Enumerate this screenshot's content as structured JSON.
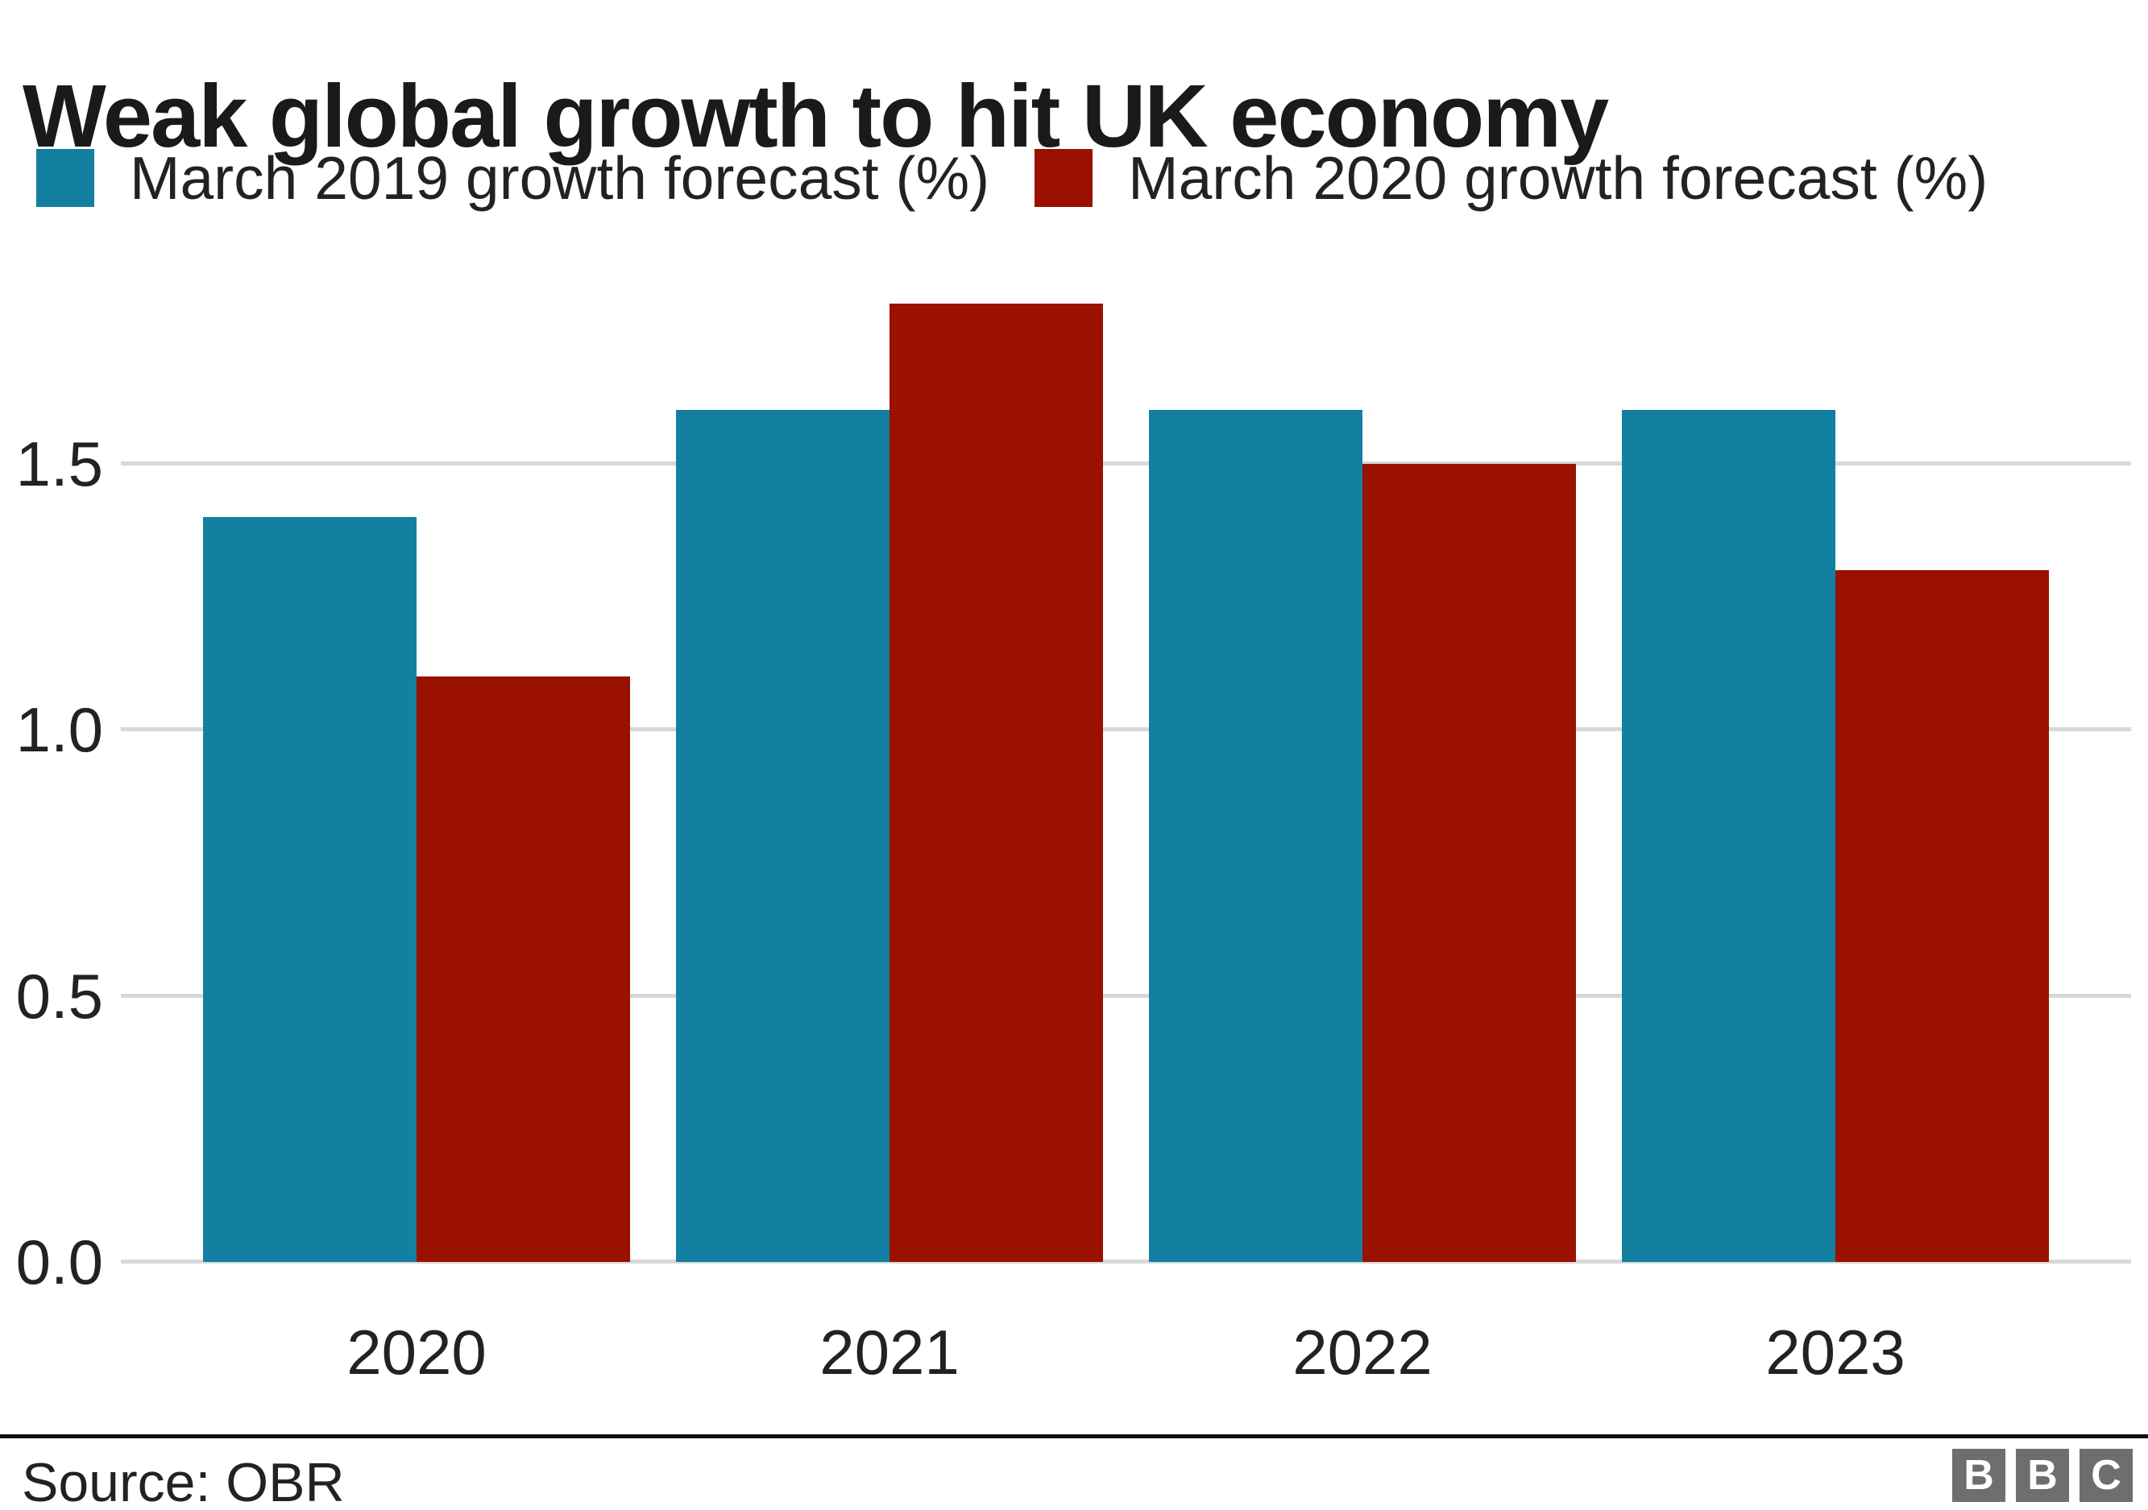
{
  "title": "Weak global growth to hit UK economy",
  "source": "Source: OBR",
  "footer_logo": {
    "letters": [
      "B",
      "B",
      "C"
    ],
    "block_color": "#6e6e6e"
  },
  "colors": {
    "series_2019": "#1380a1",
    "series_2020": "#9a1100",
    "gridline": "#d8d8d8",
    "text": "#222222",
    "title_text": "#1a1a1a",
    "divider": "#111111"
  },
  "chart_data": {
    "type": "bar",
    "title": "Weak global growth to hit UK economy",
    "categories": [
      "2020",
      "2021",
      "2022",
      "2023"
    ],
    "series": [
      {
        "name": "March 2019 growth forecast (%)",
        "color": "#1380a1",
        "values": [
          1.4,
          1.6,
          1.6,
          1.6
        ]
      },
      {
        "name": "March 2020 growth forecast (%)",
        "color": "#9a1100",
        "values": [
          1.1,
          1.8,
          1.5,
          1.3
        ]
      }
    ],
    "xlabel": "",
    "ylabel": "",
    "ylim": [
      0.0,
      1.9
    ],
    "yticks": [
      0.0,
      0.5,
      1.0,
      1.5
    ],
    "ytick_labels": [
      "0.0",
      "0.5",
      "1.0",
      "1.5"
    ],
    "grid": true,
    "legend_position": "top"
  }
}
